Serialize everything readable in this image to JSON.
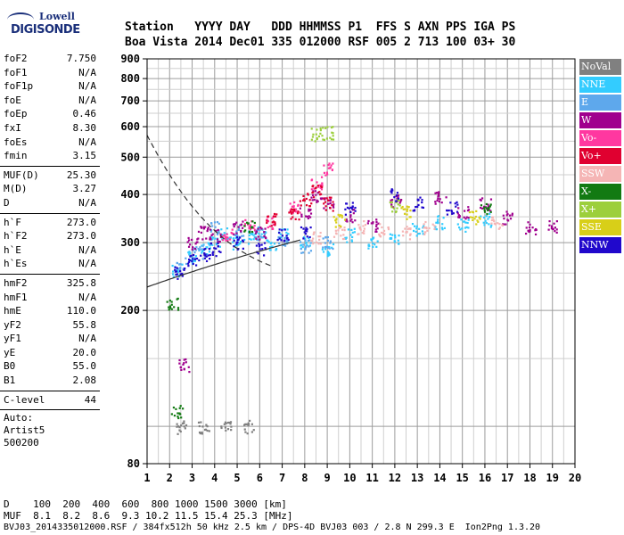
{
  "logo": {
    "line1": "Lowell",
    "line2": "DIGISONDE"
  },
  "header": {
    "labels": "Station   YYYY DAY   DDD HHMMSS P1  FFS S AXN PPS IGA PS",
    "values": "Boa Vista 2014 Dec01 335 012000 RSF 005 2 713 100 03+ 30"
  },
  "params": {
    "group1": [
      {
        "name": "foF2",
        "value": "7.750"
      },
      {
        "name": "foF1",
        "value": "N/A"
      },
      {
        "name": "foF1p",
        "value": "N/A"
      },
      {
        "name": "foE",
        "value": "N/A"
      },
      {
        "name": "foEp",
        "value": "0.46"
      },
      {
        "name": "fxI",
        "value": "8.30"
      },
      {
        "name": "foEs",
        "value": "N/A"
      },
      {
        "name": "fmin",
        "value": "3.15"
      }
    ],
    "group2": [
      {
        "name": "MUF(D)",
        "value": "25.30"
      },
      {
        "name": "M(D)",
        "value": "3.27"
      },
      {
        "name": "D",
        "value": "N/A"
      }
    ],
    "group3": [
      {
        "name": "h`F",
        "value": "273.0"
      },
      {
        "name": "h`F2",
        "value": "273.0"
      },
      {
        "name": "h`E",
        "value": "N/A"
      },
      {
        "name": "h`Es",
        "value": "N/A"
      }
    ],
    "group4": [
      {
        "name": "hmF2",
        "value": "325.8"
      },
      {
        "name": "hmF1",
        "value": "N/A"
      },
      {
        "name": "hmE",
        "value": "110.0"
      },
      {
        "name": "yF2",
        "value": "55.8"
      },
      {
        "name": "yF1",
        "value": "N/A"
      },
      {
        "name": "yE",
        "value": "20.0"
      },
      {
        "name": "B0",
        "value": "55.0"
      },
      {
        "name": "B1",
        "value": "2.08"
      }
    ],
    "group5": [
      {
        "name": "C-level",
        "value": "44"
      }
    ],
    "auto": [
      "Auto:",
      "Artist5",
      "500200"
    ]
  },
  "legend": [
    {
      "label": "NoVal",
      "color": "#808080"
    },
    {
      "label": "NNE",
      "color": "#33ccff"
    },
    {
      "label": "E",
      "color": "#5ea8ec"
    },
    {
      "label": "W",
      "color": "#a0008e"
    },
    {
      "label": "Vo-",
      "color": "#ff38a0"
    },
    {
      "label": "Vo+",
      "color": "#e00030"
    },
    {
      "label": "SSW",
      "color": "#f5b5b5"
    },
    {
      "label": "X-",
      "color": "#127a12"
    },
    {
      "label": "X+",
      "color": "#9ccf3c"
    },
    {
      "label": "SSE",
      "color": "#d8cf18"
    },
    {
      "label": "NNW",
      "color": "#2008cc"
    }
  ],
  "footer": {
    "line1": "D    100  200  400  600  800 1000 1500 3000 [km]",
    "line2": "MUF  8.1  8.2  8.6  9.3 10.2 11.5 15.4 25.3 [MHz]",
    "line3": "BVJ03_2014335012000.RSF / 384fx512h 50 kHz 2.5 km / DPS-4D BVJ03 003 / 2.8 N 299.3 E  Ion2Png 1.3.20"
  },
  "chart_data": {
    "type": "scatter",
    "xlim": [
      1,
      20
    ],
    "ylim": [
      80,
      900
    ],
    "x_ticks": [
      1,
      2,
      3,
      4,
      5,
      6,
      7,
      8,
      9,
      10,
      11,
      12,
      13,
      14,
      15,
      16,
      17,
      18,
      19,
      20
    ],
    "y_ticks": [
      80,
      200,
      300,
      400,
      500,
      600,
      700,
      800,
      900
    ],
    "y_scale": "log",
    "grid": true,
    "legend_position": "right",
    "series": [
      {
        "name": "NNE",
        "points": [
          [
            2.3,
            255
          ],
          [
            3.0,
            275
          ],
          [
            3.5,
            290
          ],
          [
            4.0,
            300
          ],
          [
            4.5,
            320
          ],
          [
            5.0,
            300
          ],
          [
            5.5,
            310
          ],
          [
            6.0,
            320
          ],
          [
            6.5,
            300
          ],
          [
            7.0,
            315
          ],
          [
            8.0,
            300
          ],
          [
            9.0,
            290
          ],
          [
            10.0,
            315
          ],
          [
            11.0,
            300
          ],
          [
            12.0,
            310
          ],
          [
            13.0,
            325
          ],
          [
            14.0,
            340
          ],
          [
            15.0,
            335
          ],
          [
            16.0,
            345
          ]
        ]
      },
      {
        "name": "E",
        "points": [
          [
            2.5,
            265
          ],
          [
            3.2,
            285
          ],
          [
            4.0,
            330
          ],
          [
            5.0,
            325
          ],
          [
            6.0,
            315
          ],
          [
            7.0,
            305
          ],
          [
            8.0,
            295
          ],
          [
            9.0,
            300
          ]
        ]
      },
      {
        "name": "W",
        "points": [
          [
            2.6,
            145
          ],
          [
            3.0,
            300
          ],
          [
            3.5,
            320
          ],
          [
            4.0,
            315
          ],
          [
            5.0,
            330
          ],
          [
            6.0,
            320
          ],
          [
            8.0,
            360
          ],
          [
            8.5,
            400
          ],
          [
            9.0,
            380
          ],
          [
            10.0,
            355
          ],
          [
            11.0,
            335
          ],
          [
            12.0,
            385
          ],
          [
            14.0,
            395
          ],
          [
            15.0,
            360
          ],
          [
            16.0,
            380
          ],
          [
            17.0,
            350
          ],
          [
            18.0,
            330
          ],
          [
            19.0,
            330
          ]
        ]
      },
      {
        "name": "Vo-",
        "points": [
          [
            4.5,
            315
          ],
          [
            5.5,
            335
          ],
          [
            6.5,
            340
          ],
          [
            7.5,
            375
          ],
          [
            8.5,
            430
          ],
          [
            9.0,
            470
          ]
        ]
      },
      {
        "name": "Vo+",
        "points": [
          [
            6.5,
            345
          ],
          [
            7.5,
            360
          ],
          [
            8.0,
            390
          ],
          [
            8.5,
            410
          ],
          [
            9.0,
            380
          ]
        ]
      },
      {
        "name": "SSW",
        "points": [
          [
            8.5,
            310
          ],
          [
            9.5,
            320
          ],
          [
            10.5,
            330
          ],
          [
            11.5,
            325
          ],
          [
            12.5,
            320
          ],
          [
            13.5,
            330
          ],
          [
            16.5,
            340
          ]
        ]
      },
      {
        "name": "X-",
        "points": [
          [
            2.1,
            210
          ],
          [
            2.3,
            110
          ],
          [
            5.5,
            330
          ],
          [
            16.0,
            370
          ]
        ]
      },
      {
        "name": "X+",
        "points": [
          [
            8.5,
            575
          ],
          [
            9.0,
            580
          ],
          [
            12.0,
            375
          ]
        ]
      },
      {
        "name": "SSE",
        "points": [
          [
            9.5,
            345
          ],
          [
            12.5,
            360
          ],
          [
            15.5,
            350
          ]
        ]
      },
      {
        "name": "NNW",
        "points": [
          [
            2.4,
            252
          ],
          [
            3.0,
            270
          ],
          [
            3.5,
            280
          ],
          [
            4.0,
            290
          ],
          [
            5.0,
            300
          ],
          [
            6.0,
            290
          ],
          [
            7.0,
            315
          ],
          [
            8.0,
            320
          ],
          [
            10.0,
            370
          ],
          [
            12.0,
            400
          ],
          [
            13.0,
            380
          ],
          [
            14.5,
            370
          ]
        ]
      },
      {
        "name": "NoVal",
        "points": [
          [
            2.5,
            100
          ],
          [
            3.5,
            100
          ],
          [
            4.5,
            100
          ],
          [
            5.5,
            100
          ]
        ]
      }
    ]
  }
}
